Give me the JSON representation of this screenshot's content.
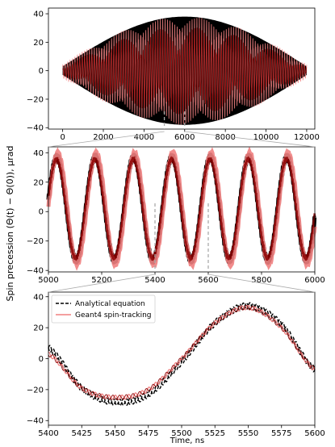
{
  "figure": {
    "ylabel": "Spin precession (Θ(t) − Θ(0)), μrad",
    "xlabel": "Time, ns"
  },
  "colors": {
    "analytical": "#000000",
    "geant4": "#f08080",
    "overlap": "#8b0000",
    "zoom_guides": "#aaaaaa"
  },
  "chart_data": [
    {
      "type": "line",
      "panel": "top",
      "xlim": [
        -700,
        12400
      ],
      "ylim": [
        -41,
        44
      ],
      "xticks": [
        0,
        2000,
        4000,
        6000,
        8000,
        10000,
        12000
      ],
      "yticks": [
        -40,
        -20,
        0,
        20,
        40
      ],
      "grid": false,
      "series": [
        {
          "name": "Analytical equation",
          "envelope_max": 38,
          "envelope_at_ends": 3,
          "x": [
            0,
            12000
          ]
        },
        {
          "name": "Geant4 spin-tracking",
          "envelope_max": 40,
          "envelope_at_ends": 5,
          "x": [
            0,
            12000
          ]
        }
      ],
      "zoom_region": [
        5000,
        6000
      ]
    },
    {
      "type": "line",
      "panel": "middle",
      "xlim": [
        5000,
        6000
      ],
      "ylim": [
        -41,
        44
      ],
      "xticks": [
        5000,
        5200,
        5400,
        5600,
        5800,
        6000
      ],
      "yticks": [
        -40,
        -20,
        0,
        20,
        40
      ],
      "grid": false,
      "oscillation_period_ns": 144,
      "amplitude": 35,
      "series": [
        {
          "name": "Analytical equation"
        },
        {
          "name": "Geant4 spin-tracking"
        }
      ],
      "zoom_region": [
        5400,
        5600
      ]
    },
    {
      "type": "line",
      "panel": "bottom",
      "xlim": [
        5400,
        5600
      ],
      "ylim": [
        -43,
        43
      ],
      "xticks": [
        5400,
        5425,
        5450,
        5475,
        5500,
        5525,
        5550,
        5575,
        5600
      ],
      "yticks": [
        -40,
        -20,
        0,
        20,
        40
      ],
      "grid": false,
      "legend": "top-left",
      "series": [
        {
          "name": "Analytical equation",
          "style": "dashed",
          "x": [
            5400,
            5425,
            5450,
            5475,
            5500,
            5525,
            5550,
            5575,
            5600
          ],
          "y": [
            7,
            -19,
            -28,
            -23,
            -2,
            23,
            34,
            22,
            -7
          ]
        },
        {
          "name": "Geant4 spin-tracking",
          "style": "solid",
          "x": [
            5400,
            5425,
            5450,
            5475,
            5500,
            5525,
            5550,
            5575,
            5600
          ],
          "y": [
            3,
            -19,
            -25,
            -20,
            0,
            23,
            33,
            20,
            -7
          ]
        }
      ]
    }
  ]
}
